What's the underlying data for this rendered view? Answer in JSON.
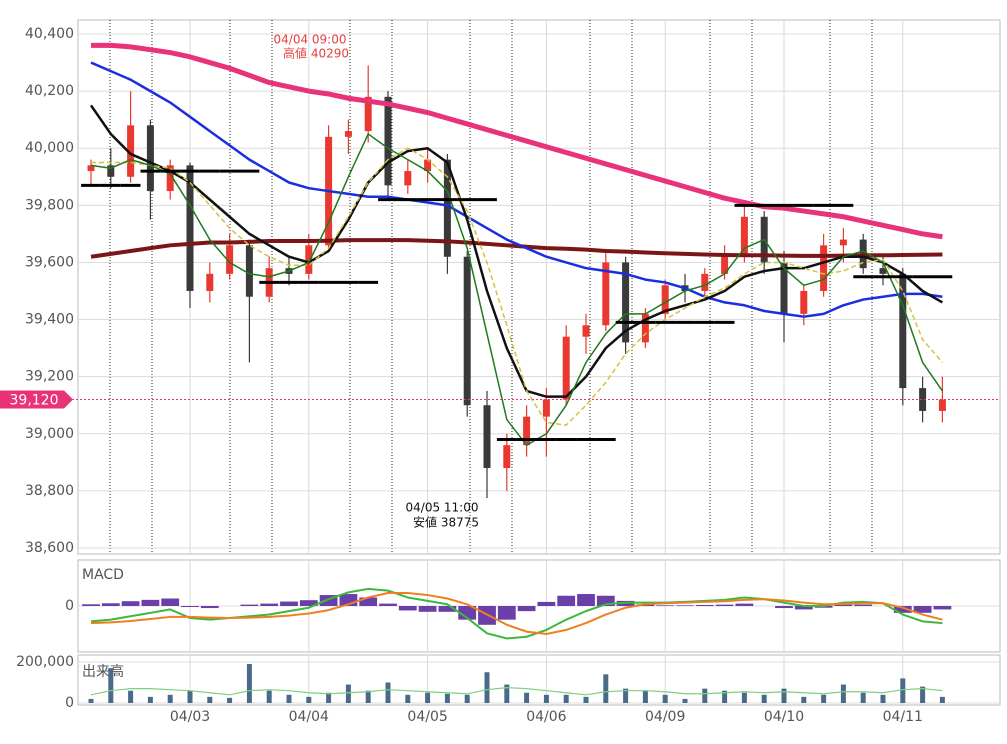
{
  "chart_data": [
    {
      "type": "candlestick",
      "ylim": [
        38600,
        40400
      ],
      "yticks": [
        {
          "value": 38600,
          "label": "38,600"
        },
        {
          "value": 38800,
          "label": "38,800"
        },
        {
          "value": 39000,
          "label": "39,000"
        },
        {
          "value": 39200,
          "label": "39,200"
        },
        {
          "value": 39400,
          "label": "39,400"
        },
        {
          "value": 39600,
          "label": "39,600"
        },
        {
          "value": 39800,
          "label": "39,800"
        },
        {
          "value": 40000,
          "label": "40,000"
        },
        {
          "value": 40200,
          "label": "40,200"
        },
        {
          "value": 40400,
          "label": "40,400"
        }
      ],
      "grid": true,
      "up_color": "#e8382f",
      "down_color": "#3a3a3a",
      "current_price": {
        "value": 39120,
        "label": "39,120"
      },
      "current_color": "#e8337a",
      "high_label": [
        "04/04 09:00",
        "高値 40290"
      ],
      "low_label": [
        "04/05 11:00",
        "安値 38775"
      ],
      "open": [
        39920,
        39940,
        39900,
        40080,
        39850,
        39940,
        39500,
        39560,
        39660,
        39480,
        39580,
        39560,
        39660,
        40040,
        40060,
        40180,
        39870,
        39920,
        39960,
        39620,
        39100,
        38880,
        38960,
        39060,
        39120,
        39340,
        39380,
        39600,
        39320,
        39420,
        39520,
        39500,
        39560,
        39620,
        39760,
        39600,
        39420,
        39500,
        39660,
        39680,
        39580,
        39560,
        39160,
        39080
      ],
      "high": [
        39960,
        40000,
        40200,
        40100,
        39960,
        39950,
        39600,
        39700,
        39680,
        39620,
        39620,
        39700,
        40080,
        40100,
        40290,
        40200,
        39960,
        40000,
        39980,
        39640,
        39150,
        39000,
        39100,
        39160,
        39380,
        39420,
        39640,
        39620,
        39440,
        39540,
        39560,
        39580,
        39660,
        39800,
        39780,
        39640,
        39520,
        39700,
        39720,
        39700,
        39620,
        39580,
        39200,
        39200
      ],
      "low": [
        39870,
        39860,
        39880,
        39750,
        39820,
        39440,
        39460,
        39540,
        39250,
        39460,
        39520,
        39540,
        39640,
        39980,
        40020,
        39820,
        39840,
        39880,
        39560,
        39060,
        38775,
        38800,
        38920,
        38920,
        39100,
        39280,
        39360,
        39280,
        39300,
        39400,
        39460,
        39480,
        39540,
        39600,
        39560,
        39320,
        39380,
        39480,
        39600,
        39560,
        39520,
        39100,
        39040,
        39040
      ],
      "close": [
        39940,
        39900,
        40080,
        39850,
        39940,
        39500,
        39560,
        39660,
        39480,
        39580,
        39560,
        39660,
        40040,
        40060,
        40180,
        39870,
        39920,
        39960,
        39620,
        39100,
        38880,
        38960,
        39060,
        39120,
        39340,
        39380,
        39600,
        39320,
        39420,
        39520,
        39500,
        39560,
        39620,
        39760,
        39600,
        39420,
        39500,
        39660,
        39680,
        39580,
        39560,
        39160,
        39080,
        39120
      ],
      "series": [
        {
          "type": "line",
          "color": "#e8337a",
          "width": 5,
          "values": [
            40360,
            40360,
            40355,
            40345,
            40335,
            40320,
            40300,
            40280,
            40255,
            40230,
            40215,
            40200,
            40190,
            40175,
            40165,
            40155,
            40140,
            40125,
            40105,
            40085,
            40065,
            40045,
            40025,
            40005,
            39985,
            39965,
            39945,
            39925,
            39905,
            39885,
            39865,
            39845,
            39825,
            39810,
            39795,
            39790,
            39780,
            39770,
            39760,
            39745,
            39730,
            39715,
            39700,
            39690
          ]
        },
        {
          "type": "line",
          "color": "#7a1616",
          "width": 4,
          "values": [
            39620,
            39630,
            39640,
            39650,
            39660,
            39665,
            39670,
            39670,
            39672,
            39675,
            39675,
            39675,
            39676,
            39678,
            39678,
            39678,
            39678,
            39676,
            39674,
            39670,
            39665,
            39660,
            39655,
            39650,
            39648,
            39645,
            39640,
            39638,
            39635,
            39632,
            39630,
            39628,
            39626,
            39625,
            39625,
            39624,
            39623,
            39623,
            39624,
            39625,
            39625,
            39626,
            39627,
            39628
          ]
        },
        {
          "type": "line",
          "color": "#1a2ee0",
          "width": 2.5,
          "values": [
            40300,
            40270,
            40240,
            40200,
            40160,
            40110,
            40060,
            40010,
            39960,
            39920,
            39880,
            39860,
            39850,
            39840,
            39830,
            39830,
            39820,
            39810,
            39800,
            39760,
            39720,
            39680,
            39650,
            39620,
            39600,
            39580,
            39570,
            39560,
            39540,
            39530,
            39510,
            39480,
            39460,
            39450,
            39430,
            39420,
            39410,
            39420,
            39450,
            39470,
            39480,
            39490,
            39490,
            39480
          ]
        },
        {
          "type": "line",
          "color": "#111111",
          "width": 2.5,
          "values": [
            40150,
            40050,
            39980,
            39950,
            39920,
            39880,
            39820,
            39760,
            39700,
            39660,
            39620,
            39600,
            39640,
            39750,
            39880,
            39950,
            39990,
            40000,
            39950,
            39750,
            39500,
            39300,
            39150,
            39130,
            39130,
            39200,
            39300,
            39360,
            39400,
            39430,
            39450,
            39470,
            39500,
            39550,
            39570,
            39580,
            39580,
            39600,
            39620,
            39620,
            39600,
            39560,
            39500,
            39460
          ]
        },
        {
          "type": "line",
          "color": "#d6c13a",
          "width": 1.5,
          "dashed": true,
          "values": [
            39950,
            39950,
            39950,
            39940,
            39930,
            39880,
            39800,
            39720,
            39660,
            39620,
            39590,
            39590,
            39650,
            39760,
            39880,
            39960,
            40000,
            39960,
            39900,
            39780,
            39600,
            39380,
            39150,
            39040,
            39030,
            39100,
            39180,
            39280,
            39350,
            39400,
            39440,
            39480,
            39510,
            39560,
            39600,
            39600,
            39580,
            39560,
            39570,
            39600,
            39610,
            39500,
            39330,
            39250
          ]
        },
        {
          "type": "line",
          "color": "#1f7a1f",
          "width": 1.5,
          "values": [
            39940,
            39930,
            39960,
            39940,
            39910,
            39800,
            39680,
            39600,
            39560,
            39550,
            39570,
            39600,
            39740,
            39900,
            40050,
            40000,
            39960,
            39920,
            39850,
            39650,
            39350,
            39050,
            38960,
            39000,
            39100,
            39250,
            39350,
            39420,
            39420,
            39460,
            39500,
            39520,
            39560,
            39650,
            39680,
            39580,
            39520,
            39540,
            39620,
            39640,
            39600,
            39450,
            39250,
            39150
          ]
        },
        {
          "type": "step",
          "color": "#000000",
          "width": 3,
          "values": [
            39870,
            39870,
            39870,
            39920,
            39920,
            39920,
            39920,
            39920,
            39920,
            39530,
            39530,
            39530,
            39530,
            39530,
            39530,
            39820,
            39820,
            39820,
            39820,
            39820,
            39820,
            38980,
            38980,
            38980,
            38980,
            38980,
            38980,
            39390,
            39390,
            39390,
            39390,
            39390,
            39390,
            39800,
            39800,
            39800,
            39800,
            39800,
            39800,
            39550,
            39550,
            39550,
            39550,
            39550
          ]
        }
      ]
    },
    {
      "type": "macd",
      "title": "MACD",
      "ylim": [
        -120,
        120
      ],
      "yticks": [
        0
      ],
      "grid": true,
      "series": [
        {
          "type": "bar",
          "color": "#6a3fa8",
          "values": [
            5,
            8,
            14,
            18,
            22,
            -3,
            -6,
            0,
            4,
            7,
            13,
            17,
            32,
            35,
            25,
            7,
            -13,
            -17,
            -17,
            -40,
            -55,
            -40,
            -15,
            12,
            30,
            35,
            30,
            15,
            5,
            2,
            2,
            3,
            4,
            7,
            0,
            -6,
            -10,
            -5,
            4,
            4,
            0,
            -20,
            -20,
            -10
          ]
        },
        {
          "type": "line",
          "color": "#3cb83c",
          "width": 2,
          "values": [
            -45,
            -40,
            -30,
            -20,
            -10,
            -35,
            -40,
            -35,
            -30,
            -25,
            -15,
            -5,
            20,
            40,
            50,
            45,
            25,
            15,
            5,
            -35,
            -80,
            -95,
            -90,
            -70,
            -40,
            -15,
            5,
            10,
            10,
            10,
            12,
            15,
            18,
            25,
            20,
            10,
            0,
            0,
            10,
            12,
            8,
            -25,
            -45,
            -50
          ]
        },
        {
          "type": "line",
          "color": "#f07f22",
          "width": 2,
          "values": [
            -50,
            -48,
            -44,
            -38,
            -32,
            -32,
            -34,
            -35,
            -34,
            -32,
            -28,
            -22,
            -12,
            5,
            25,
            38,
            38,
            32,
            22,
            5,
            -25,
            -55,
            -75,
            -82,
            -70,
            -50,
            -25,
            -5,
            5,
            8,
            10,
            12,
            14,
            18,
            20,
            16,
            10,
            5,
            6,
            8,
            8,
            -5,
            -25,
            -40
          ]
        }
      ]
    },
    {
      "type": "bar",
      "title": "出来高",
      "ylim": [
        0,
        200000
      ],
      "yticks": [
        0,
        {
          "value": 200000,
          "label": "200,000"
        }
      ],
      "grid": true,
      "color": "#4a6a8a",
      "categories": [
        null,
        null,
        null,
        null,
        null,
        "04/03",
        null,
        null,
        null,
        null,
        null,
        "04/04",
        null,
        null,
        null,
        null,
        null,
        "04/05",
        null,
        null,
        null,
        null,
        null,
        "04/06",
        null,
        null,
        null,
        null,
        null,
        "04/09",
        null,
        null,
        null,
        null,
        null,
        "04/10",
        null,
        null,
        null,
        null,
        null,
        "04/11",
        null,
        null
      ],
      "values": [
        20000,
        170000,
        60000,
        30000,
        40000,
        60000,
        30000,
        25000,
        190000,
        60000,
        40000,
        30000,
        50000,
        90000,
        60000,
        100000,
        40000,
        50000,
        45000,
        40000,
        150000,
        90000,
        50000,
        40000,
        40000,
        30000,
        140000,
        70000,
        60000,
        40000,
        20000,
        70000,
        60000,
        50000,
        40000,
        70000,
        30000,
        40000,
        90000,
        50000,
        40000,
        120000,
        80000,
        30000
      ],
      "series": [
        {
          "type": "line",
          "color": "#7ed07e",
          "width": 1.2,
          "values": [
            40000,
            60000,
            70000,
            70000,
            65000,
            60000,
            50000,
            40000,
            60000,
            65000,
            60000,
            50000,
            45000,
            50000,
            55000,
            65000,
            60000,
            55000,
            50000,
            45000,
            65000,
            75000,
            70000,
            60000,
            50000,
            40000,
            55000,
            60000,
            60000,
            55000,
            45000,
            45000,
            50000,
            55000,
            50000,
            55000,
            50000,
            45000,
            55000,
            55000,
            50000,
            65000,
            70000,
            60000
          ]
        }
      ]
    }
  ]
}
